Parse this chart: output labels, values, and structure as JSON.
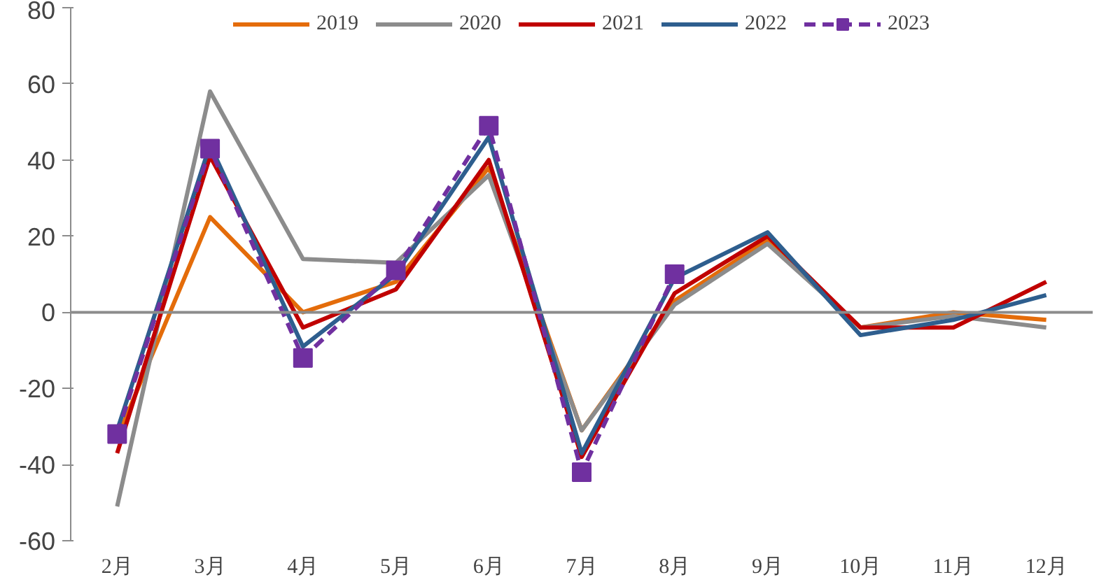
{
  "chart_data": {
    "type": "line",
    "categories": [
      "2月",
      "3月",
      "4月",
      "5月",
      "6月",
      "7月",
      "8月",
      "9月",
      "10月",
      "11月",
      "12月"
    ],
    "series": [
      {
        "name": "2019",
        "color": "#e46c0a",
        "values": [
          -33,
          25,
          0,
          8,
          38,
          -31,
          3,
          19,
          -4,
          0,
          -2
        ]
      },
      {
        "name": "2020",
        "color": "#8c8c8c",
        "values": [
          -51,
          58,
          14,
          13,
          36,
          -31,
          2,
          18,
          -4,
          -1,
          -4
        ]
      },
      {
        "name": "2021",
        "color": "#c00000",
        "values": [
          -37,
          41,
          -4,
          6,
          40,
          -38,
          5,
          20,
          -4,
          -4,
          8
        ]
      },
      {
        "name": "2022",
        "color": "#2e5e8e",
        "values": [
          -31,
          44,
          -9,
          10,
          46,
          -37,
          9,
          21,
          -6,
          -2,
          4.5
        ]
      },
      {
        "name": "2023",
        "color": "#7030a0",
        "values": [
          -32,
          43,
          -12,
          11,
          49,
          -42,
          10,
          null,
          null,
          null,
          null
        ],
        "marker": "square",
        "line_style": "dashed"
      }
    ],
    "ylim": [
      -60,
      80
    ],
    "yticks": [
      -60,
      -40,
      -20,
      0,
      20,
      40,
      60,
      80
    ],
    "ref_lines": [
      {
        "axis": "y",
        "value": 0,
        "color": "#8c8c8c"
      }
    ],
    "grid": false,
    "legend": "top",
    "marker": "none",
    "line_style": "solid"
  }
}
